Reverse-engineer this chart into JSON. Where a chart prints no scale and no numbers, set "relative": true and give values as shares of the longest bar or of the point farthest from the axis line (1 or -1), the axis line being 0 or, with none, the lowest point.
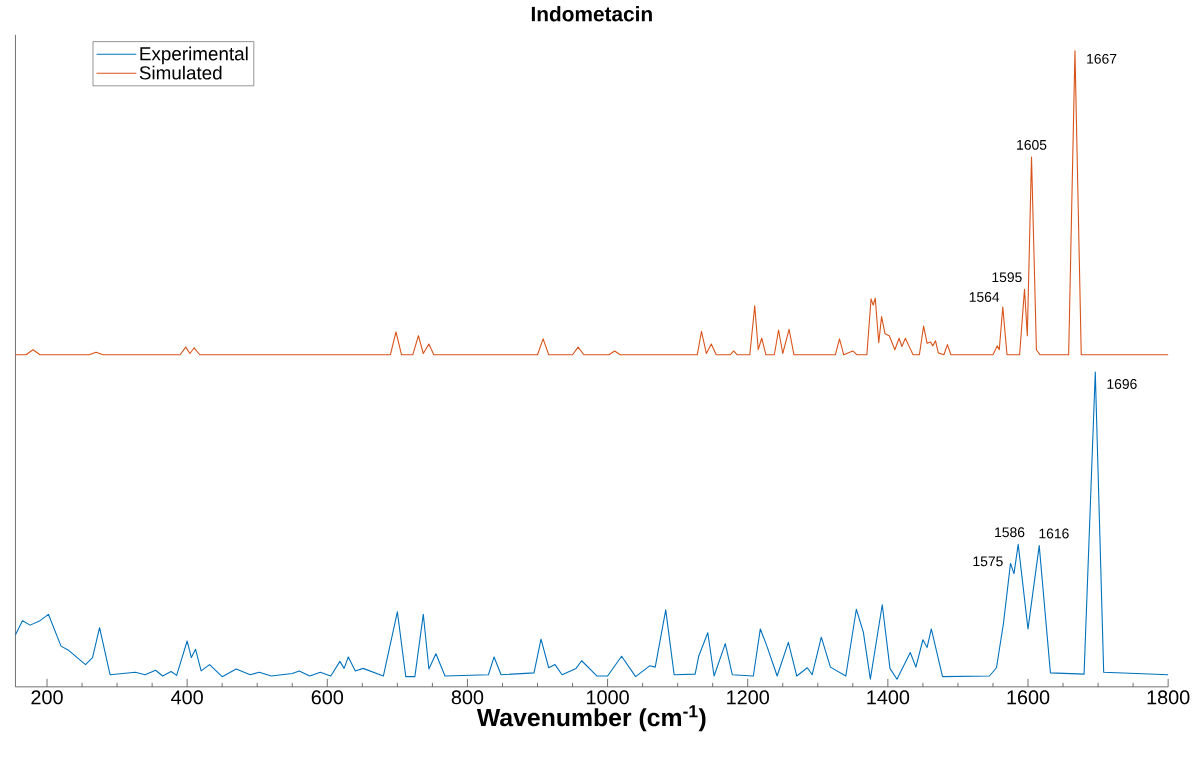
{
  "chart_data": {
    "type": "line",
    "title": "Indometacin",
    "xlabel": "Wavenumber (cm$^{-1}$)",
    "relative": true,
    "xlim": [
      155,
      1800
    ],
    "xticks": [
      200,
      400,
      600,
      800,
      1000,
      1200,
      1400,
      1600,
      1800
    ],
    "legend": "top left",
    "marker": "none",
    "line_style": "solid",
    "series": [
      {
        "name": "Experimental",
        "color": "#0072bd",
        "x": [
          155,
          165,
          176,
          190,
          202,
          220,
          230,
          255,
          265,
          275,
          290,
          326,
          340,
          355,
          365,
          377,
          385,
          400,
          406,
          412,
          420,
          432,
          450,
          470,
          490,
          503,
          520,
          550,
          560,
          575,
          590,
          605,
          618,
          624,
          630,
          640,
          651,
          680,
          700,
          712,
          725,
          737,
          745,
          755,
          768,
          830,
          838,
          848,
          895,
          905,
          916,
          925,
          935,
          955,
          963,
          985,
          1000,
          1020,
          1040,
          1060,
          1068,
          1083,
          1095,
          1125,
          1130,
          1143,
          1152,
          1168,
          1178,
          1208,
          1218,
          1228,
          1242,
          1258,
          1270,
          1285,
          1292,
          1305,
          1318,
          1340,
          1355,
          1365,
          1375,
          1392,
          1403,
          1413,
          1432,
          1440,
          1450,
          1456,
          1462,
          1478,
          1545,
          1555,
          1565,
          1575,
          1580,
          1586,
          1600,
          1616,
          1632,
          1680,
          1696,
          1708,
          1800
        ],
        "values": [
          0.082,
          0.104,
          0.097,
          0.104,
          0.114,
          0.064,
          0.058,
          0.035,
          0.046,
          0.093,
          0.019,
          0.023,
          0.019,
          0.026,
          0.017,
          0.024,
          0.018,
          0.072,
          0.046,
          0.059,
          0.025,
          0.035,
          0.016,
          0.028,
          0.019,
          0.023,
          0.017,
          0.021,
          0.025,
          0.017,
          0.023,
          0.017,
          0.04,
          0.029,
          0.047,
          0.025,
          0.029,
          0.017,
          0.118,
          0.016,
          0.016,
          0.114,
          0.028,
          0.052,
          0.017,
          0.019,
          0.047,
          0.019,
          0.022,
          0.075,
          0.03,
          0.035,
          0.019,
          0.029,
          0.041,
          0.017,
          0.017,
          0.048,
          0.016,
          0.033,
          0.031,
          0.121,
          0.019,
          0.02,
          0.048,
          0.085,
          0.017,
          0.068,
          0.019,
          0.017,
          0.091,
          0.062,
          0.017,
          0.07,
          0.017,
          0.03,
          0.019,
          0.078,
          0.031,
          0.017,
          0.122,
          0.086,
          0.012,
          0.129,
          0.029,
          0.012,
          0.054,
          0.031,
          0.074,
          0.062,
          0.091,
          0.016,
          0.017,
          0.03,
          0.1,
          0.194,
          0.178,
          0.224,
          0.091,
          0.222,
          0.022,
          0.02,
          0.495,
          0.023,
          0.019
        ]
      },
      {
        "name": "Simulated",
        "color": "#d95319",
        "x": [
          155,
          170,
          180,
          190,
          260,
          270,
          280,
          390,
          398,
          404,
          410,
          418,
          690,
          698,
          706,
          722,
          730,
          737,
          745,
          752,
          900,
          908,
          916,
          950,
          958,
          966,
          1002,
          1010,
          1018,
          1128,
          1134,
          1141,
          1148,
          1155,
          1175,
          1180,
          1185,
          1203,
          1210,
          1215,
          1220,
          1226,
          1238,
          1244,
          1250,
          1259,
          1266,
          1325,
          1331,
          1337,
          1350,
          1356,
          1370,
          1376,
          1379,
          1382,
          1387,
          1391,
          1396,
          1402,
          1410,
          1416,
          1420,
          1425,
          1430,
          1436,
          1445,
          1451,
          1456,
          1461,
          1464,
          1468,
          1472,
          1480,
          1485,
          1490,
          1550,
          1556,
          1559,
          1564,
          1570,
          1588,
          1595,
          1599,
          1605,
          1612,
          1617,
          1658,
          1667,
          1676,
          1800
        ],
        "values": [
          0.522,
          0.522,
          0.53,
          0.522,
          0.522,
          0.526,
          0.522,
          0.522,
          0.534,
          0.524,
          0.533,
          0.522,
          0.522,
          0.558,
          0.522,
          0.522,
          0.552,
          0.524,
          0.539,
          0.522,
          0.522,
          0.547,
          0.522,
          0.522,
          0.534,
          0.522,
          0.522,
          0.528,
          0.522,
          0.522,
          0.559,
          0.524,
          0.539,
          0.522,
          0.522,
          0.528,
          0.522,
          0.522,
          0.599,
          0.53,
          0.548,
          0.522,
          0.522,
          0.561,
          0.524,
          0.562,
          0.522,
          0.522,
          0.547,
          0.522,
          0.528,
          0.522,
          0.522,
          0.61,
          0.6,
          0.611,
          0.541,
          0.582,
          0.555,
          0.552,
          0.53,
          0.548,
          0.535,
          0.548,
          0.536,
          0.522,
          0.522,
          0.567,
          0.54,
          0.542,
          0.536,
          0.544,
          0.525,
          0.522,
          0.538,
          0.522,
          0.522,
          0.536,
          0.53,
          0.597,
          0.522,
          0.522,
          0.625,
          0.552,
          0.833,
          0.53,
          0.522,
          0.522,
          1.0,
          0.522,
          0.522
        ]
      }
    ],
    "annotations": [
      {
        "text": "1667",
        "x": 1667,
        "y": 1.0
      },
      {
        "text": "1605",
        "x": 1605,
        "y": 0.833
      },
      {
        "text": "1595",
        "x": 1595,
        "y": 0.625
      },
      {
        "text": "1564",
        "x": 1564,
        "y": 0.597
      },
      {
        "text": "1696",
        "x": 1696,
        "y": 0.495
      },
      {
        "text": "1586",
        "x": 1586,
        "y": 0.224
      },
      {
        "text": "1616",
        "x": 1616,
        "y": 0.222
      },
      {
        "text": "1575",
        "x": 1575,
        "y": 0.194
      }
    ]
  }
}
